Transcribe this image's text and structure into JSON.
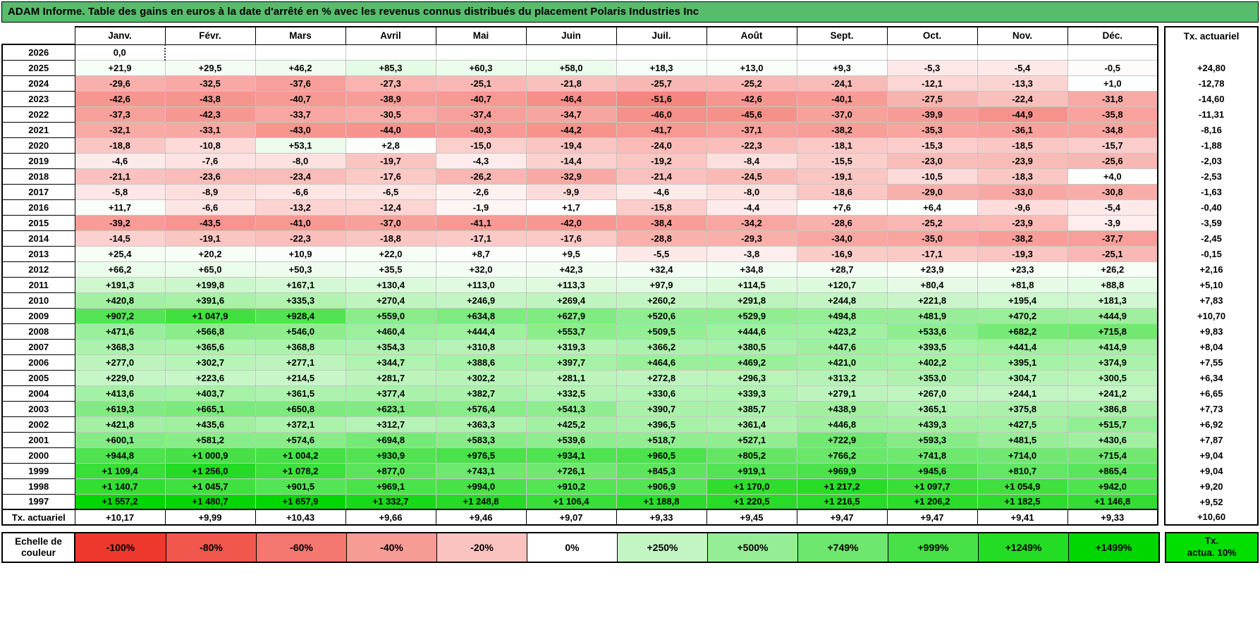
{
  "title": "ADAM Informe. Table des gains en euros à la date d'arrêté en % avec les revenus connus distribués du placement Polaris Industries Inc",
  "right_column": {
    "header": "Tx. actuariel"
  },
  "legend": {
    "label": "Echelle de couleur",
    "tx_box_line1": "Tx.",
    "tx_box_line2": "actua. 10%",
    "labels": [
      "-100%",
      "-80%",
      "-60%",
      "-40%",
      "-20%",
      "0%",
      "+250%",
      "+500%",
      "+749%",
      "+999%",
      "+1249%",
      "+1499%"
    ],
    "values": [
      -100,
      -80,
      -60,
      -40,
      -20,
      0,
      250,
      500,
      749,
      999,
      1249,
      1499
    ]
  },
  "colors": {
    "title_bg": "#57BD6C",
    "negative_full": "#EF382D",
    "positive_full": "#00D600",
    "tx_box_bg": "#00DF00"
  },
  "chart_data": {
    "type": "heatmap",
    "title": "ADAM Informe. Table des gains en euros à la date d'arrêté en % avec les revenus connus distribués du placement Polaris Industries Inc",
    "unit": "%",
    "columns": [
      "Janv.",
      "Févr.",
      "Mars",
      "Avril",
      "Mai",
      "Juin",
      "Juil.",
      "Août",
      "Sept.",
      "Oct.",
      "Nov.",
      "Déc."
    ],
    "rows": [
      "2026",
      "2025",
      "2024",
      "2023",
      "2022",
      "2021",
      "2020",
      "2019",
      "2018",
      "2017",
      "2016",
      "2015",
      "2014",
      "2013",
      "2012",
      "2011",
      "2010",
      "2009",
      "2008",
      "2007",
      "2006",
      "2005",
      "2004",
      "2003",
      "2002",
      "2001",
      "2000",
      "1999",
      "1998",
      "1997"
    ],
    "values": [
      [
        0,
        null,
        null,
        null,
        null,
        null,
        null,
        null,
        null,
        null,
        null,
        null
      ],
      [
        21.9,
        29.5,
        46.2,
        85.3,
        60.3,
        58.0,
        18.3,
        13.0,
        9.3,
        -5.3,
        -5.4,
        -0.5
      ],
      [
        -29.6,
        -32.5,
        -37.6,
        -27.3,
        -25.1,
        -21.8,
        -25.7,
        -25.2,
        -24.1,
        -12.1,
        -13.3,
        1.0
      ],
      [
        -42.6,
        -43.8,
        -40.7,
        -38.9,
        -40.7,
        -46.4,
        -51.6,
        -42.6,
        -40.1,
        -27.5,
        -22.4,
        -31.8
      ],
      [
        -37.3,
        -42.3,
        -33.7,
        -30.5,
        -37.4,
        -34.7,
        -46.0,
        -45.6,
        -37.0,
        -39.9,
        -44.9,
        -35.8
      ],
      [
        -32.1,
        -33.1,
        -43.0,
        -44.0,
        -40.3,
        -44.2,
        -41.7,
        -37.1,
        -38.2,
        -35.3,
        -36.1,
        -34.8
      ],
      [
        -18.8,
        -10.8,
        53.1,
        2.8,
        -15.0,
        -19.4,
        -24.0,
        -22.3,
        -18.1,
        -15.3,
        -18.5,
        -15.7
      ],
      [
        -4.6,
        -7.6,
        -8.0,
        -19.7,
        -4.3,
        -14.4,
        -19.2,
        -8.4,
        -15.5,
        -23.0,
        -23.9,
        -25.6
      ],
      [
        -21.1,
        -23.6,
        -23.4,
        -17.6,
        -26.2,
        -32.9,
        -21.4,
        -24.5,
        -19.1,
        -10.5,
        -18.3,
        4.0
      ],
      [
        -5.8,
        -8.9,
        -6.6,
        -6.5,
        -2.6,
        -9.9,
        -4.6,
        -8.0,
        -18.6,
        -29.0,
        -33.0,
        -30.8
      ],
      [
        11.7,
        -6.6,
        -13.2,
        -12.4,
        -1.9,
        1.7,
        -15.8,
        -4.4,
        7.6,
        6.4,
        -9.6,
        -5.4
      ],
      [
        -39.2,
        -43.5,
        -41.0,
        -37.0,
        -41.1,
        -42.0,
        -38.4,
        -34.2,
        -28.6,
        -25.2,
        -23.9,
        -3.9
      ],
      [
        -14.5,
        -19.1,
        -22.3,
        -18.8,
        -17.1,
        -17.6,
        -28.8,
        -29.3,
        -34.0,
        -35.0,
        -38.2,
        -37.7
      ],
      [
        25.4,
        20.2,
        10.9,
        22.0,
        8.7,
        9.5,
        -5.5,
        -3.8,
        -16.9,
        -17.1,
        -19.3,
        -25.1
      ],
      [
        66.2,
        65.0,
        50.3,
        35.5,
        32.0,
        42.3,
        32.4,
        34.8,
        28.7,
        23.9,
        23.3,
        26.2
      ],
      [
        191.3,
        199.8,
        167.1,
        130.4,
        113.0,
        113.3,
        97.9,
        114.5,
        120.7,
        80.4,
        81.8,
        88.8
      ],
      [
        420.8,
        391.6,
        335.3,
        270.4,
        246.9,
        269.4,
        260.2,
        291.8,
        244.8,
        221.8,
        195.4,
        181.3
      ],
      [
        907.2,
        1047.9,
        928.4,
        559.0,
        634.8,
        627.9,
        520.6,
        529.9,
        494.8,
        481.9,
        470.2,
        444.9
      ],
      [
        471.6,
        566.8,
        546.0,
        460.4,
        444.4,
        553.7,
        509.5,
        444.6,
        423.2,
        533.6,
        682.2,
        715.8
      ],
      [
        368.3,
        365.6,
        368.8,
        354.3,
        310.8,
        319.3,
        366.2,
        380.5,
        447.6,
        393.5,
        441.4,
        414.9
      ],
      [
        277.0,
        302.7,
        277.1,
        344.7,
        388.6,
        397.7,
        464.6,
        469.2,
        421.0,
        402.2,
        395.1,
        374.9
      ],
      [
        229.0,
        223.6,
        214.5,
        281.7,
        302.2,
        281.1,
        272.8,
        296.3,
        313.2,
        353.0,
        304.7,
        300.5
      ],
      [
        413.6,
        403.7,
        361.5,
        377.4,
        382.7,
        332.5,
        330.6,
        339.3,
        279.1,
        267.0,
        244.1,
        241.2
      ],
      [
        619.3,
        665.1,
        650.8,
        623.1,
        576.4,
        541.3,
        390.7,
        385.7,
        438.9,
        365.1,
        375.8,
        386.8
      ],
      [
        421.8,
        435.6,
        372.1,
        312.7,
        363.3,
        425.2,
        396.5,
        361.4,
        446.8,
        439.3,
        427.5,
        515.7
      ],
      [
        600.1,
        581.2,
        574.6,
        694.8,
        583.3,
        539.6,
        518.7,
        527.1,
        722.9,
        593.3,
        481.5,
        430.6
      ],
      [
        944.8,
        1000.9,
        1004.2,
        930.9,
        976.5,
        934.1,
        960.5,
        805.2,
        766.2,
        741.8,
        714.0,
        715.4
      ],
      [
        1109.4,
        1256.0,
        1078.2,
        877.0,
        743.1,
        726.1,
        845.3,
        919.1,
        969.9,
        945.6,
        810.7,
        865.4
      ],
      [
        1140.7,
        1045.7,
        901.5,
        969.1,
        994.0,
        910.2,
        906.9,
        1170.0,
        1217.2,
        1097.7,
        1054.9,
        942.0
      ],
      [
        1557.2,
        1480.7,
        1657.9,
        1332.7,
        1248.8,
        1106.4,
        1188.8,
        1220.5,
        1216.5,
        1206.2,
        1182.5,
        1146.8
      ]
    ],
    "row_totals_label": "Tx. actuariel",
    "row_totals": [
      null,
      24.8,
      -12.78,
      -14.6,
      -11.31,
      -8.16,
      -1.88,
      -2.03,
      -2.53,
      -1.63,
      -0.4,
      -3.59,
      -2.45,
      -0.15,
      2.16,
      5.1,
      7.83,
      10.7,
      9.83,
      8.04,
      7.55,
      6.34,
      6.65,
      7.73,
      6.92,
      7.87,
      9.04,
      9.04,
      9.2,
      9.52
    ],
    "column_totals_label": "Tx. actuariel",
    "column_totals": [
      10.17,
      9.99,
      10.43,
      9.66,
      9.46,
      9.07,
      9.33,
      9.45,
      9.47,
      9.47,
      9.41,
      9.33
    ],
    "grand_total": 10.6,
    "colorscale": "red (-100%) to white (0%) to green (+1499%)"
  }
}
